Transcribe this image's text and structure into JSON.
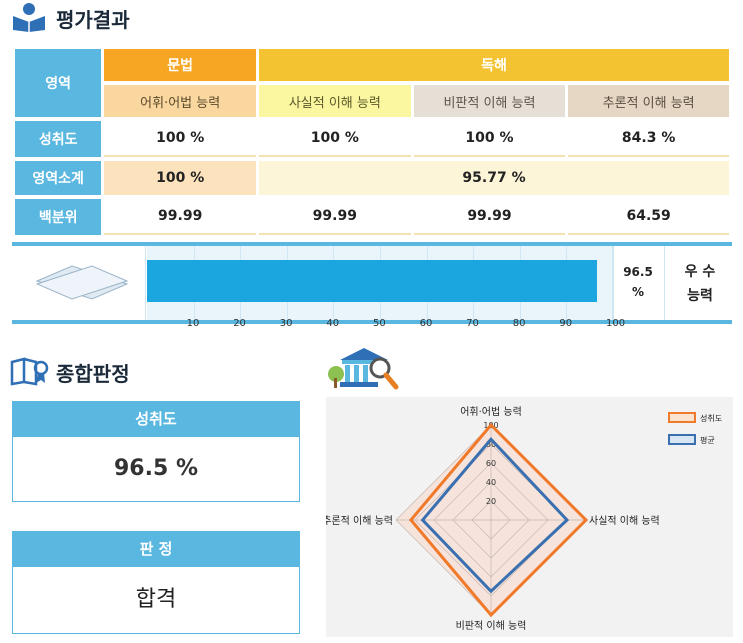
{
  "page": {
    "title": "평가결과",
    "section2_title": "종합판정"
  },
  "table": {
    "area_label": "영역",
    "group_grammar": "문법",
    "group_reading": "독해",
    "sub_headers": [
      "어휘·어법 능력",
      "사실적 이해 능력",
      "비판적 이해 능력",
      "추론적 이해 능력"
    ],
    "rows": [
      {
        "label": "성취도",
        "values": [
          "100 %",
          "100 %",
          "100 %",
          "84.3 %"
        ]
      },
      {
        "label": "영역소계",
        "values": [
          "100 %",
          "95.77 %"
        ]
      },
      {
        "label": "백분위",
        "values": [
          "99.99",
          "99.99",
          "99.99",
          "64.59"
        ]
      }
    ]
  },
  "bar": {
    "value": 96.5,
    "value_text": "96.5",
    "unit": "%",
    "grade_line1": "우 수",
    "grade_line2": "능력",
    "ticks": [
      "10",
      "20",
      "30",
      "40",
      "50",
      "60",
      "70",
      "80",
      "90",
      "100"
    ],
    "fill_color": "#1ba6df"
  },
  "summary": {
    "achievement_label": "성취도",
    "achievement_value": "96.5 %",
    "judgement_label": "판 정",
    "judgement_value": "합격"
  },
  "chart_data": {
    "type": "radar",
    "axes": [
      "어휘·어법 능력",
      "사실적 이해 능력",
      "비판적 이해 능력",
      "추론적 이해 능력"
    ],
    "rlim": [
      0,
      100
    ],
    "ticks": [
      "100",
      "80",
      "60",
      "40",
      "20"
    ],
    "series": [
      {
        "name": "성취도",
        "values": [
          100,
          100,
          100,
          84.3
        ],
        "color": "#f07a2a"
      },
      {
        "name": "평균",
        "values": [
          85,
          80,
          75,
          72
        ],
        "color": "#3a6fb0"
      }
    ],
    "legend_position": "top-right"
  },
  "colors": {
    "accent": "#5ab7e0",
    "orange": "#f6a623",
    "yellow": "#f3c331"
  }
}
